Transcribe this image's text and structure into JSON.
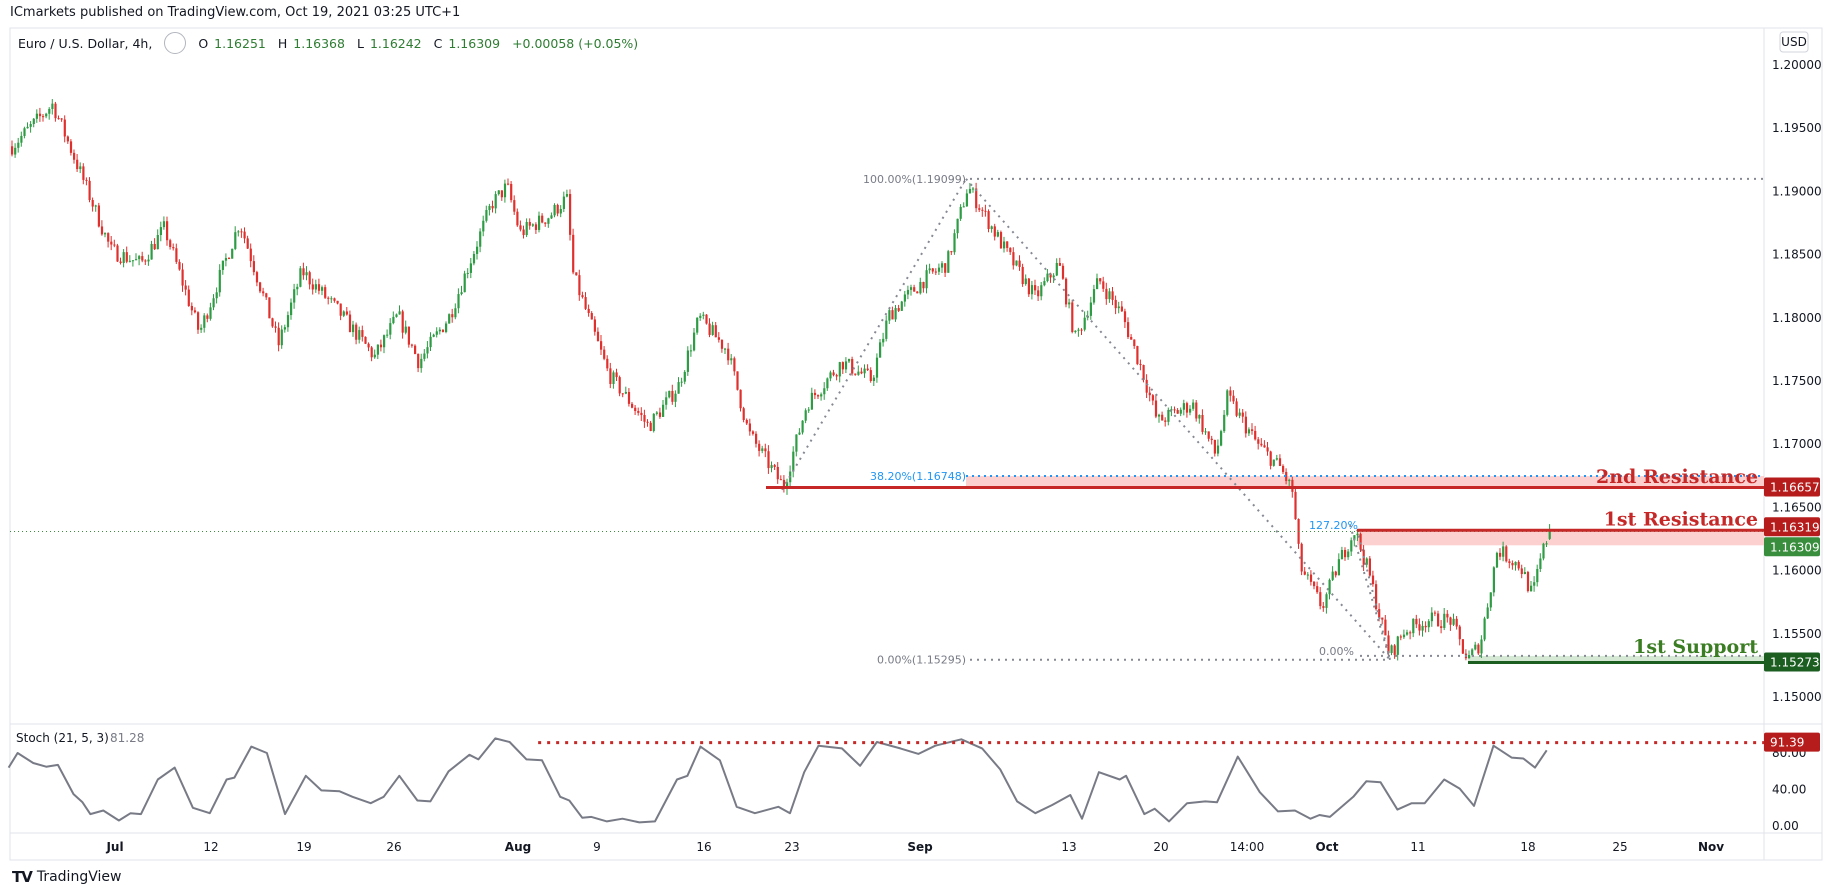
{
  "header": {
    "published": "ICmarkets published on TradingView.com, Oct 19, 2021 03:25 UTC+1",
    "symbol": "Euro / U.S. Dollar, 4h,",
    "o_label": "O",
    "o": "1.16251",
    "h_label": "H",
    "h": "1.16368",
    "l_label": "L",
    "l": "1.16242",
    "c_label": "C",
    "c": "1.16309",
    "change": "+0.00058 (+0.05%)"
  },
  "currency": "USD",
  "price_axis": [
    "1.20000",
    "1.19500",
    "1.19000",
    "1.18500",
    "1.18000",
    "1.17500",
    "1.17000",
    "1.16500",
    "1.16000",
    "1.15500",
    "1.15000"
  ],
  "price_tags": [
    {
      "text": "1.16657",
      "color": "#b71c1c"
    },
    {
      "text": "1.16319",
      "color": "#b71c1c"
    },
    {
      "text": "1.16309",
      "color": "#388e3c"
    },
    {
      "text": "1.15273",
      "color": "#1b5e20"
    }
  ],
  "annotations": {
    "fib_100": "100.00%(1.19099)",
    "fib_382": "38.20%(1.16748)",
    "fib_0": "0.00%(1.15295)",
    "ext_1272": "127.20%",
    "ext_0": "0.00%",
    "resistance_2": "2nd Resistance",
    "resistance_1": "1st Resistance",
    "support_1": "1st Support"
  },
  "stoch": {
    "label": "Stoch (21, 5, 3)",
    "value": "81.28",
    "level_tag": "91.39",
    "axis": [
      "80.00",
      "40.00",
      "0.00"
    ]
  },
  "date_axis": [
    "Jul",
    "12",
    "19",
    "26",
    "Aug",
    "9",
    "16",
    "23",
    "Sep",
    "13",
    "20",
    "14:00",
    "Oct",
    "11",
    "18",
    "25",
    "Nov"
  ],
  "footer": {
    "brand": "TradingView"
  },
  "colors": {
    "up": "#2e9c44",
    "down": "#e0302d",
    "resistance": "#c62828",
    "support": "#1b5e20",
    "stoch": "#787b86"
  },
  "chart_data": {
    "type": "candlestick",
    "title": "Euro / U.S. Dollar, 4h",
    "x_unit": "days since Jul 1 2021",
    "ylim": [
      1.1465,
      1.2035
    ],
    "price_path": [
      [
        -8.0,
        1.1935
      ],
      [
        -4.8,
        1.1969
      ],
      [
        -2.6,
        1.1913
      ],
      [
        -0.3,
        1.1853
      ],
      [
        2.0,
        1.1843
      ],
      [
        3.8,
        1.1871
      ],
      [
        6.5,
        1.1788
      ],
      [
        9.6,
        1.1876
      ],
      [
        12.6,
        1.1779
      ],
      [
        14.4,
        1.1837
      ],
      [
        17.3,
        1.1804
      ],
      [
        20.0,
        1.1769
      ],
      [
        21.8,
        1.1802
      ],
      [
        23.4,
        1.1765
      ],
      [
        25.8,
        1.1802
      ],
      [
        29.0,
        1.189
      ],
      [
        30.2,
        1.1904
      ],
      [
        31.2,
        1.1867
      ],
      [
        33.5,
        1.1881
      ],
      [
        34.8,
        1.1895
      ],
      [
        35.3,
        1.1834
      ],
      [
        38.0,
        1.1756
      ],
      [
        41.1,
        1.1714
      ],
      [
        43.4,
        1.1746
      ],
      [
        45.0,
        1.18
      ],
      [
        47.2,
        1.1774
      ],
      [
        48.8,
        1.1709
      ],
      [
        51.5,
        1.1666
      ],
      [
        53.3,
        1.1732
      ],
      [
        56.0,
        1.1765
      ],
      [
        58.3,
        1.1751
      ],
      [
        59.6,
        1.1802
      ],
      [
        62.3,
        1.183
      ],
      [
        64.1,
        1.1843
      ],
      [
        65.7,
        1.1904
      ],
      [
        67.3,
        1.1876
      ],
      [
        68.6,
        1.1853
      ],
      [
        70.9,
        1.1816
      ],
      [
        72.7,
        1.1843
      ],
      [
        74.0,
        1.1783
      ],
      [
        75.8,
        1.183
      ],
      [
        77.6,
        1.1802
      ],
      [
        79.2,
        1.1756
      ],
      [
        80.3,
        1.1718
      ],
      [
        83.0,
        1.1732
      ],
      [
        84.8,
        1.1691
      ],
      [
        85.7,
        1.1737
      ],
      [
        88.0,
        1.17
      ],
      [
        89.8,
        1.1681
      ],
      [
        90.7,
        1.1663
      ],
      [
        91.3,
        1.1603
      ],
      [
        93.0,
        1.1571
      ],
      [
        94.3,
        1.1607
      ],
      [
        95.5,
        1.1632
      ],
      [
        96.6,
        1.1598
      ],
      [
        98.2,
        1.1533
      ],
      [
        99.3,
        1.1552
      ],
      [
        101.1,
        1.1561
      ],
      [
        102.9,
        1.1561
      ],
      [
        104.2,
        1.1529
      ],
      [
        105.2,
        1.1543
      ],
      [
        106.5,
        1.1617
      ],
      [
        108.3,
        1.1603
      ],
      [
        109.2,
        1.158
      ],
      [
        109.9,
        1.1612
      ],
      [
        110.5,
        1.1631
      ]
    ],
    "last_candle": {
      "open": 1.16251,
      "high": 1.16368,
      "low": 1.16242,
      "close": 1.16309
    },
    "levels": {
      "resistance_2": 1.16657,
      "fib_382": 1.16748,
      "resistance_1": 1.16319,
      "resistance_1_zone_low": 1.162,
      "current": 1.16309,
      "support_1": 1.15273,
      "support_1_zone_high": 1.15325,
      "fib_100": 1.19099,
      "fib_0": 1.15295
    },
    "stoch_series": [
      [
        -8.2,
        64
      ],
      [
        -7.5,
        80
      ],
      [
        -6.3,
        69
      ],
      [
        -5.3,
        65
      ],
      [
        -4.4,
        67
      ],
      [
        -3.2,
        35
      ],
      [
        -2.5,
        26
      ],
      [
        -1.9,
        13
      ],
      [
        -0.9,
        17
      ],
      [
        0.3,
        6
      ],
      [
        1.2,
        14
      ],
      [
        2.0,
        13
      ],
      [
        3.3,
        51
      ],
      [
        4.6,
        64
      ],
      [
        6.0,
        20
      ],
      [
        7.3,
        14
      ],
      [
        8.6,
        51
      ],
      [
        9.2,
        53
      ],
      [
        10.5,
        87
      ],
      [
        11.7,
        80
      ],
      [
        13.1,
        13
      ],
      [
        14.7,
        55
      ],
      [
        15.9,
        39
      ],
      [
        17.3,
        38
      ],
      [
        18.3,
        32
      ],
      [
        19.7,
        25
      ],
      [
        20.7,
        32
      ],
      [
        21.9,
        55
      ],
      [
        23.3,
        28
      ],
      [
        24.3,
        27
      ],
      [
        25.7,
        60
      ],
      [
        27.3,
        78
      ],
      [
        28.0,
        73
      ],
      [
        29.3,
        96
      ],
      [
        30.4,
        92
      ],
      [
        31.7,
        73
      ],
      [
        32.9,
        72
      ],
      [
        34.3,
        32
      ],
      [
        35.0,
        28
      ],
      [
        36.0,
        9
      ],
      [
        36.7,
        10
      ],
      [
        37.9,
        5
      ],
      [
        39.1,
        8
      ],
      [
        40.4,
        4
      ],
      [
        41.6,
        5
      ],
      [
        43.3,
        51
      ],
      [
        44.1,
        55
      ],
      [
        45.1,
        87
      ],
      [
        46.6,
        72
      ],
      [
        47.9,
        21
      ],
      [
        49.3,
        14
      ],
      [
        51.1,
        21
      ],
      [
        52.0,
        14
      ],
      [
        53.1,
        59
      ],
      [
        54.2,
        88
      ],
      [
        56.0,
        85
      ],
      [
        57.4,
        66
      ],
      [
        58.7,
        92
      ],
      [
        60.5,
        85
      ],
      [
        61.9,
        79
      ],
      [
        63.2,
        88
      ],
      [
        65.2,
        95
      ],
      [
        66.8,
        85
      ],
      [
        68.2,
        62
      ],
      [
        69.5,
        27
      ],
      [
        70.9,
        14
      ],
      [
        72.2,
        23
      ],
      [
        73.6,
        34
      ],
      [
        74.5,
        8
      ],
      [
        75.8,
        59
      ],
      [
        77.4,
        51
      ],
      [
        77.9,
        55
      ],
      [
        79.3,
        13
      ],
      [
        80.1,
        19
      ],
      [
        81.2,
        5
      ],
      [
        82.6,
        25
      ],
      [
        84.0,
        27
      ],
      [
        84.9,
        26
      ],
      [
        86.5,
        76
      ],
      [
        88.2,
        37
      ],
      [
        89.6,
        16
      ],
      [
        90.9,
        17
      ],
      [
        92.1,
        8
      ],
      [
        92.8,
        12
      ],
      [
        93.6,
        10
      ],
      [
        95.4,
        32
      ],
      [
        96.4,
        49
      ],
      [
        97.5,
        48
      ],
      [
        98.8,
        18
      ],
      [
        99.9,
        25
      ],
      [
        100.9,
        25
      ],
      [
        102.4,
        51
      ],
      [
        103.6,
        41
      ],
      [
        104.7,
        22
      ],
      [
        106.2,
        88
      ],
      [
        107.6,
        75
      ],
      [
        108.5,
        74
      ],
      [
        109.4,
        64
      ],
      [
        110.3,
        83
      ]
    ],
    "stoch_level": 91.39,
    "stoch_ylim": [
      0,
      100
    ]
  }
}
